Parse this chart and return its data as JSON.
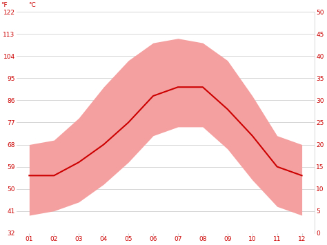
{
  "months": [
    1,
    2,
    3,
    4,
    5,
    6,
    7,
    8,
    9,
    10,
    11,
    12
  ],
  "month_labels": [
    "01",
    "02",
    "03",
    "04",
    "05",
    "06",
    "07",
    "08",
    "09",
    "10",
    "11",
    "12"
  ],
  "avg_temp_c": [
    13,
    13,
    16,
    20,
    25,
    31,
    33,
    33,
    28,
    22,
    15,
    13
  ],
  "max_temp_c": [
    20,
    21,
    26,
    33,
    39,
    43,
    44,
    43,
    39,
    31,
    22,
    20
  ],
  "min_temp_c": [
    4,
    5,
    7,
    11,
    16,
    22,
    24,
    24,
    19,
    12,
    6,
    4
  ],
  "left_axis_f": [
    32,
    41,
    50,
    59,
    68,
    77,
    86,
    95,
    104,
    113,
    122
  ],
  "left_axis_c": [
    0,
    5,
    10,
    15,
    20,
    25,
    30,
    35,
    40,
    45,
    50
  ],
  "ylim_c": [
    0,
    50
  ],
  "line_color": "#cc0000",
  "band_color": "#f5a0a0",
  "background_color": "#ffffff",
  "grid_color": "#d0d0d0",
  "label_color": "#cc0000",
  "line_width": 1.5,
  "figsize": [
    4.74,
    3.55
  ],
  "dpi": 100
}
